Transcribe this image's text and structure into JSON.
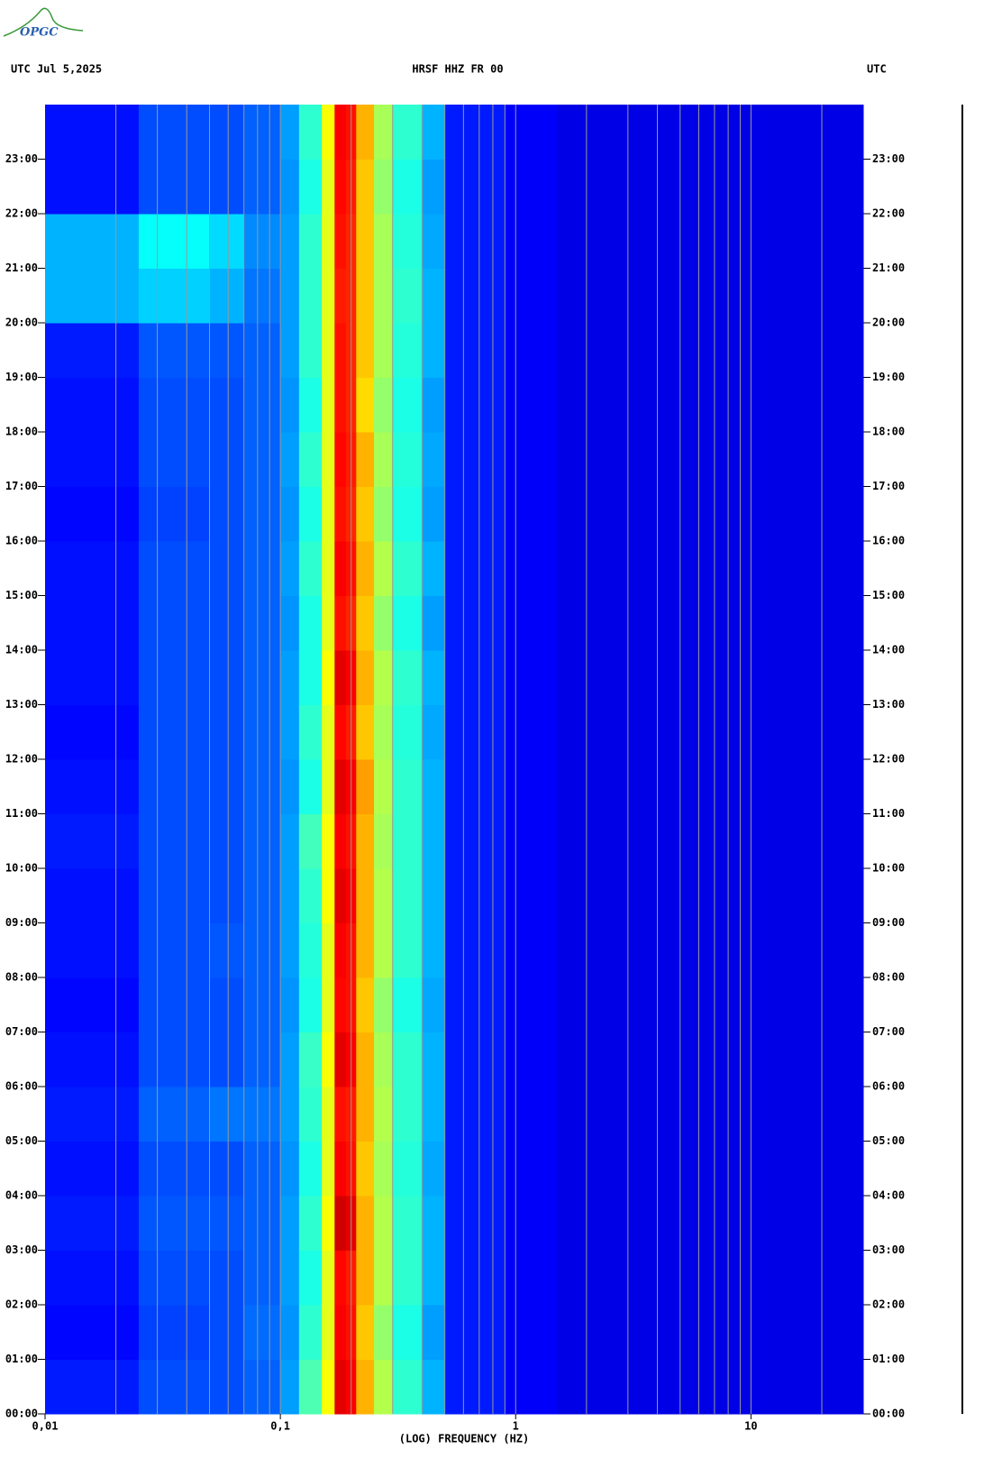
{
  "logo": "OPGC",
  "chart_data": {
    "type": "spectrogram",
    "title_left": "UTC  Jul 5,2025",
    "title": "HRSF HHZ FR 00",
    "title_right": "UTC",
    "xlabel": "(LOG) FREQUENCY (HZ)",
    "xlog": true,
    "xlim": [
      0.01,
      30
    ],
    "xticks": [
      {
        "value": 0.01,
        "label": "0,01"
      },
      {
        "value": 0.1,
        "label": "0,1"
      },
      1,
      10
    ],
    "xgrid": [
      0.02,
      0.03,
      0.04,
      0.05,
      0.06,
      0.07,
      0.08,
      0.09,
      0.1,
      0.2,
      0.3,
      0.4,
      0.5,
      0.6,
      0.7,
      0.8,
      0.9,
      1,
      2,
      3,
      4,
      5,
      6,
      7,
      8,
      9,
      10,
      20
    ],
    "ylim": [
      0,
      24
    ],
    "yticks": [
      {
        "value": 0,
        "label": "00:00"
      },
      {
        "value": 1,
        "label": "01:00"
      },
      {
        "value": 2,
        "label": "02:00"
      },
      {
        "value": 3,
        "label": "03:00"
      },
      {
        "value": 4,
        "label": "04:00"
      },
      {
        "value": 5,
        "label": "05:00"
      },
      {
        "value": 6,
        "label": "06:00"
      },
      {
        "value": 7,
        "label": "07:00"
      },
      {
        "value": 8,
        "label": "08:00"
      },
      {
        "value": 9,
        "label": "09:00"
      },
      {
        "value": 10,
        "label": "10:00"
      },
      {
        "value": 11,
        "label": "11:00"
      },
      {
        "value": 12,
        "label": "12:00"
      },
      {
        "value": 13,
        "label": "13:00"
      },
      {
        "value": 14,
        "label": "14:00"
      },
      {
        "value": 15,
        "label": "15:00"
      },
      {
        "value": 16,
        "label": "16:00"
      },
      {
        "value": 17,
        "label": "17:00"
      },
      {
        "value": 18,
        "label": "18:00"
      },
      {
        "value": 19,
        "label": "19:00"
      },
      {
        "value": 20,
        "label": "20:00"
      },
      {
        "value": 21,
        "label": "21:00"
      },
      {
        "value": 22,
        "label": "22:00"
      },
      {
        "value": 23,
        "label": "23:00"
      }
    ],
    "colorscale": "jet",
    "x_edges": [
      0.01,
      0.025,
      0.05,
      0.07,
      0.1,
      0.12,
      0.15,
      0.17,
      0.19,
      0.21,
      0.25,
      0.3,
      0.4,
      0.5,
      0.9,
      1.5,
      30
    ],
    "z": [
      [
        0.15,
        0.2,
        0.2,
        0.22,
        0.28,
        0.45,
        0.62,
        0.9,
        0.88,
        0.7,
        0.55,
        0.42,
        0.3,
        0.15,
        0.12,
        0.1
      ],
      [
        0.13,
        0.19,
        0.2,
        0.23,
        0.27,
        0.42,
        0.6,
        0.88,
        0.86,
        0.68,
        0.52,
        0.4,
        0.28,
        0.15,
        0.12,
        0.1
      ],
      [
        0.14,
        0.2,
        0.2,
        0.22,
        0.28,
        0.4,
        0.6,
        0.87,
        0.85,
        0.7,
        0.55,
        0.42,
        0.3,
        0.15,
        0.12,
        0.1
      ],
      [
        0.15,
        0.21,
        0.21,
        0.22,
        0.28,
        0.42,
        0.62,
        0.92,
        0.9,
        0.7,
        0.55,
        0.42,
        0.3,
        0.15,
        0.12,
        0.1
      ],
      [
        0.14,
        0.2,
        0.2,
        0.22,
        0.27,
        0.4,
        0.6,
        0.88,
        0.86,
        0.68,
        0.54,
        0.41,
        0.29,
        0.15,
        0.12,
        0.1
      ],
      [
        0.15,
        0.22,
        0.24,
        0.24,
        0.28,
        0.42,
        0.6,
        0.86,
        0.85,
        0.7,
        0.55,
        0.42,
        0.3,
        0.15,
        0.12,
        0.1
      ],
      [
        0.14,
        0.2,
        0.2,
        0.22,
        0.28,
        0.43,
        0.62,
        0.9,
        0.88,
        0.7,
        0.54,
        0.42,
        0.3,
        0.15,
        0.12,
        0.1
      ],
      [
        0.13,
        0.2,
        0.2,
        0.22,
        0.27,
        0.4,
        0.6,
        0.87,
        0.86,
        0.68,
        0.52,
        0.4,
        0.29,
        0.15,
        0.12,
        0.1
      ],
      [
        0.14,
        0.2,
        0.21,
        0.22,
        0.28,
        0.41,
        0.6,
        0.88,
        0.86,
        0.7,
        0.55,
        0.42,
        0.3,
        0.15,
        0.12,
        0.1
      ],
      [
        0.14,
        0.2,
        0.2,
        0.22,
        0.28,
        0.42,
        0.62,
        0.9,
        0.88,
        0.7,
        0.55,
        0.42,
        0.3,
        0.15,
        0.12,
        0.1
      ],
      [
        0.15,
        0.2,
        0.2,
        0.22,
        0.28,
        0.44,
        0.62,
        0.88,
        0.86,
        0.7,
        0.54,
        0.42,
        0.3,
        0.15,
        0.12,
        0.1
      ],
      [
        0.14,
        0.2,
        0.2,
        0.22,
        0.27,
        0.4,
        0.6,
        0.9,
        0.88,
        0.72,
        0.55,
        0.42,
        0.3,
        0.15,
        0.12,
        0.1
      ],
      [
        0.13,
        0.2,
        0.2,
        0.22,
        0.28,
        0.42,
        0.6,
        0.87,
        0.85,
        0.68,
        0.54,
        0.41,
        0.29,
        0.15,
        0.12,
        0.1
      ],
      [
        0.14,
        0.2,
        0.2,
        0.22,
        0.28,
        0.4,
        0.62,
        0.9,
        0.88,
        0.7,
        0.55,
        0.42,
        0.3,
        0.15,
        0.12,
        0.1
      ],
      [
        0.14,
        0.2,
        0.2,
        0.22,
        0.27,
        0.4,
        0.6,
        0.86,
        0.84,
        0.68,
        0.52,
        0.4,
        0.28,
        0.15,
        0.12,
        0.1
      ],
      [
        0.14,
        0.2,
        0.2,
        0.22,
        0.28,
        0.42,
        0.6,
        0.88,
        0.86,
        0.7,
        0.55,
        0.42,
        0.3,
        0.15,
        0.12,
        0.1
      ],
      [
        0.13,
        0.19,
        0.2,
        0.22,
        0.27,
        0.4,
        0.6,
        0.86,
        0.84,
        0.68,
        0.52,
        0.4,
        0.28,
        0.15,
        0.12,
        0.1
      ],
      [
        0.14,
        0.2,
        0.2,
        0.22,
        0.28,
        0.42,
        0.6,
        0.87,
        0.85,
        0.7,
        0.54,
        0.41,
        0.29,
        0.15,
        0.12,
        0.1
      ],
      [
        0.14,
        0.2,
        0.2,
        0.22,
        0.27,
        0.4,
        0.6,
        0.86,
        0.84,
        0.66,
        0.52,
        0.4,
        0.28,
        0.15,
        0.12,
        0.1
      ],
      [
        0.15,
        0.21,
        0.21,
        0.22,
        0.28,
        0.42,
        0.6,
        0.86,
        0.84,
        0.68,
        0.54,
        0.41,
        0.3,
        0.15,
        0.12,
        0.1
      ],
      [
        0.3,
        0.33,
        0.3,
        0.24,
        0.28,
        0.42,
        0.6,
        0.85,
        0.84,
        0.68,
        0.54,
        0.42,
        0.3,
        0.15,
        0.12,
        0.1
      ],
      [
        0.3,
        0.38,
        0.34,
        0.26,
        0.28,
        0.42,
        0.6,
        0.86,
        0.84,
        0.68,
        0.54,
        0.41,
        0.29,
        0.15,
        0.12,
        0.1
      ],
      [
        0.14,
        0.2,
        0.2,
        0.22,
        0.27,
        0.4,
        0.6,
        0.87,
        0.85,
        0.68,
        0.52,
        0.4,
        0.28,
        0.15,
        0.12,
        0.1
      ],
      [
        0.14,
        0.2,
        0.2,
        0.22,
        0.28,
        0.42,
        0.62,
        0.88,
        0.86,
        0.7,
        0.54,
        0.42,
        0.3,
        0.15,
        0.12,
        0.1
      ]
    ]
  }
}
